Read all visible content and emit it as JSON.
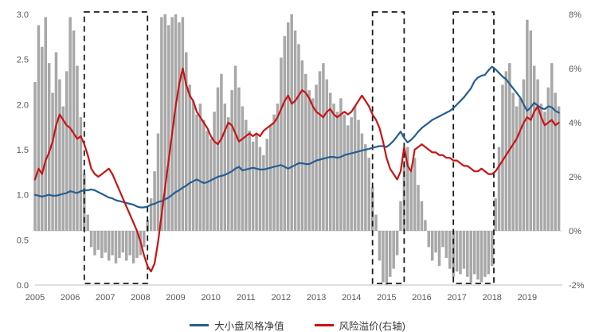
{
  "chart_data": {
    "type": "line",
    "title": "",
    "x_range": [
      2005,
      2020
    ],
    "x_ticks": [
      2005,
      2006,
      2007,
      2008,
      2009,
      2010,
      2011,
      2012,
      2013,
      2014,
      2015,
      2016,
      2017,
      2018,
      2019
    ],
    "x_start": 2005.0,
    "x_step": 0.1,
    "left_axis": {
      "min": 0,
      "max": 3,
      "ticks": [
        0,
        0.5,
        1,
        1.5,
        2,
        2.5,
        3
      ],
      "tick_labels": [
        "0.0",
        "0.5",
        "1.0",
        "1.5",
        "2.0",
        "2.5",
        "3.0"
      ]
    },
    "right_axis": {
      "min": -2,
      "max": 8,
      "ticks": [
        -2,
        0,
        2,
        4,
        6,
        8
      ],
      "tick_labels": [
        "-2%",
        "0%",
        "2%",
        "4%",
        "6%",
        "8%"
      ]
    },
    "colors": {
      "box": "#1a1a1a",
      "zero_line": "#d9d9d9",
      "axis_line": "#bfbfbf"
    },
    "grid": "off",
    "legend_position": "bottom-center",
    "series": [
      {
        "name": "gray-bars-unlabeled",
        "type": "bar",
        "axis": "right",
        "color": "#a8a8a8",
        "values": [
          5.5,
          7.6,
          6.8,
          7.9,
          6.2,
          5.1,
          6.6,
          5.6,
          4.6,
          5.9,
          7.9,
          7.4,
          6.1,
          4.2,
          2.1,
          0.6,
          -0.6,
          -0.9,
          -0.7,
          -1.0,
          -0.8,
          -1.1,
          -0.9,
          -1.2,
          -1.0,
          -0.8,
          -1.1,
          -0.9,
          -1.2,
          -1.0,
          -0.9,
          -0.6,
          0.4,
          1.2,
          2.2,
          3.6,
          7.9,
          8.0,
          7.6,
          7.9,
          8.0,
          7.7,
          7.9,
          6.6,
          5.4,
          4.8,
          4.3,
          4.7,
          4.1,
          3.7,
          3.4,
          4.4,
          5.3,
          5.8,
          4.7,
          4.2,
          5.2,
          6.1,
          5.3,
          4.6,
          4.1,
          3.7,
          3.3,
          3.6,
          3.1,
          2.8,
          3.4,
          3.9,
          4.3,
          4.7,
          6.4,
          7.2,
          7.7,
          8.0,
          7.4,
          6.9,
          6.3,
          5.8,
          5.2,
          4.9,
          5.4,
          5.9,
          6.2,
          5.6,
          5.1,
          4.7,
          4.4,
          4.9,
          4.3,
          3.9,
          4.2,
          4.6,
          4.1,
          3.6,
          3.2,
          2.7,
          1.6,
          0.6,
          -1.1,
          -1.9,
          -2.0,
          -1.7,
          -1.4,
          -0.9,
          1.1,
          2.6,
          3.1,
          2.2,
          2.7,
          1.7,
          1.1,
          0.4,
          -0.6,
          -1.1,
          -0.8,
          -1.3,
          -0.6,
          -1.0,
          -1.4,
          -1.7,
          -1.5,
          -1.6,
          -1.4,
          -1.7,
          -1.9,
          -1.6,
          -1.8,
          -1.9,
          -1.7,
          -1.6,
          -1.3,
          1.2,
          3.1,
          5.4,
          5.9,
          6.2,
          5.1,
          4.6,
          4.9,
          5.6,
          7.8,
          7.4,
          6.1,
          5.6,
          4.7,
          4.4,
          5.3,
          6.2,
          5.1,
          4.6
        ]
      },
      {
        "name": "大小盘风格净值",
        "type": "line",
        "axis": "left",
        "color": "#255e91",
        "values": [
          1.0,
          0.99,
          0.98,
          0.99,
          1.0,
          0.99,
          0.99,
          1.0,
          1.01,
          1.02,
          1.04,
          1.03,
          1.02,
          1.04,
          1.05,
          1.05,
          1.06,
          1.05,
          1.03,
          1.01,
          0.99,
          0.97,
          0.96,
          0.94,
          0.93,
          0.92,
          0.91,
          0.9,
          0.89,
          0.87,
          0.86,
          0.86,
          0.87,
          0.89,
          0.9,
          0.92,
          0.93,
          0.95,
          0.97,
          1.0,
          1.03,
          1.05,
          1.08,
          1.1,
          1.13,
          1.15,
          1.17,
          1.15,
          1.13,
          1.14,
          1.16,
          1.18,
          1.2,
          1.21,
          1.22,
          1.24,
          1.26,
          1.29,
          1.31,
          1.27,
          1.28,
          1.29,
          1.3,
          1.29,
          1.28,
          1.28,
          1.29,
          1.3,
          1.31,
          1.32,
          1.33,
          1.31,
          1.29,
          1.31,
          1.33,
          1.35,
          1.35,
          1.34,
          1.34,
          1.36,
          1.38,
          1.39,
          1.4,
          1.41,
          1.42,
          1.42,
          1.41,
          1.42,
          1.44,
          1.45,
          1.46,
          1.47,
          1.48,
          1.49,
          1.5,
          1.51,
          1.52,
          1.53,
          1.54,
          1.54,
          1.53,
          1.56,
          1.6,
          1.65,
          1.7,
          1.63,
          1.58,
          1.61,
          1.65,
          1.7,
          1.74,
          1.77,
          1.8,
          1.83,
          1.85,
          1.87,
          1.89,
          1.91,
          1.93,
          1.96,
          2.0,
          2.04,
          2.08,
          2.13,
          2.18,
          2.26,
          2.3,
          2.32,
          2.33,
          2.38,
          2.42,
          2.39,
          2.35,
          2.31,
          2.28,
          2.23,
          2.18,
          2.13,
          2.08,
          2.0,
          1.93,
          1.97,
          2.02,
          1.99,
          1.96,
          1.95,
          1.98,
          1.97,
          1.93,
          1.91
        ]
      },
      {
        "name": "风险溢价(右轴)",
        "type": "line",
        "axis": "right",
        "color": "#c81414",
        "values": [
          1.9,
          2.3,
          2.1,
          2.6,
          2.9,
          3.3,
          3.9,
          4.3,
          4.1,
          3.9,
          3.8,
          3.6,
          3.4,
          3.5,
          3.2,
          2.8,
          2.3,
          2.1,
          2.0,
          2.1,
          2.2,
          2.3,
          2.1,
          1.8,
          1.5,
          1.2,
          0.9,
          0.6,
          0.3,
          0.0,
          -0.4,
          -0.9,
          -1.3,
          -1.5,
          -1.2,
          -0.4,
          0.6,
          1.6,
          2.6,
          3.6,
          4.6,
          5.4,
          6.0,
          5.4,
          5.0,
          4.8,
          4.4,
          4.2,
          4.0,
          3.8,
          3.5,
          3.3,
          3.2,
          3.4,
          3.7,
          4.0,
          3.9,
          3.6,
          3.3,
          3.4,
          3.5,
          3.6,
          3.5,
          3.6,
          3.5,
          3.7,
          3.8,
          3.9,
          4.0,
          4.2,
          4.5,
          4.8,
          5.0,
          4.7,
          4.8,
          5.0,
          5.2,
          5.1,
          4.9,
          4.6,
          4.4,
          4.3,
          4.2,
          4.4,
          4.5,
          4.3,
          4.2,
          4.3,
          4.4,
          4.3,
          4.4,
          4.6,
          4.8,
          5.0,
          4.8,
          4.6,
          4.3,
          4.1,
          3.8,
          3.3,
          2.7,
          2.3,
          2.1,
          1.9,
          2.2,
          3.1,
          2.4,
          2.2,
          3.0,
          3.1,
          3.2,
          3.1,
          3.0,
          2.9,
          2.9,
          2.8,
          2.8,
          2.7,
          2.7,
          2.6,
          2.6,
          2.5,
          2.4,
          2.4,
          2.3,
          2.2,
          2.2,
          2.3,
          2.2,
          2.1,
          2.1,
          2.2,
          2.4,
          2.6,
          2.8,
          3.0,
          3.2,
          3.4,
          3.7,
          4.0,
          4.2,
          4.1,
          4.4,
          4.6,
          4.2,
          3.9,
          4.0,
          4.1,
          3.9,
          4.0
        ]
      }
    ],
    "highlight_boxes": [
      {
        "from": 2006.4,
        "to": 2008.2
      },
      {
        "from": 2014.6,
        "to": 2015.5
      },
      {
        "from": 2016.9,
        "to": 2018.05
      }
    ],
    "legend": [
      {
        "label": "大小盘风格净值",
        "color": "#255e91"
      },
      {
        "label": "风险溢价(右轴)",
        "color": "#c81414"
      }
    ]
  }
}
